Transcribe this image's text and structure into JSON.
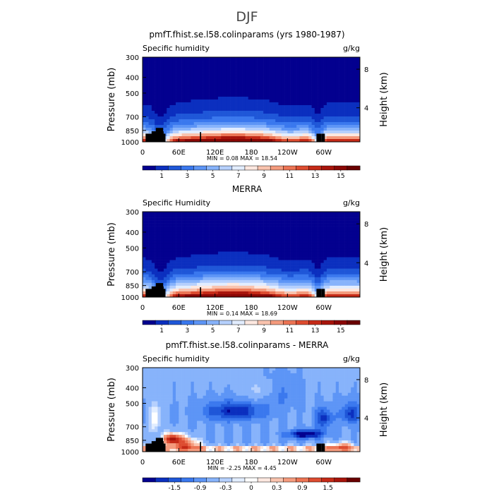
{
  "main_title": "DJF",
  "colors_positive": [
    "#03008f",
    "#0b2fbf",
    "#1f57d8",
    "#3a78ee",
    "#5d95f6",
    "#87b3fb",
    "#b6d0fd",
    "#e2edff",
    "#fde8e0",
    "#f9c3ae",
    "#f49b7d",
    "#ec7454",
    "#dd4c30",
    "#c52a17",
    "#a8140b",
    "#8a0705",
    "#6a0000"
  ],
  "colors_diff": [
    "#03008f",
    "#0b2fbf",
    "#1f57d8",
    "#3a78ee",
    "#5d95f6",
    "#87b3fb",
    "#b6d0fd",
    "#e2edff",
    "#ffffff",
    "#fde8e0",
    "#f9c3ae",
    "#f49b7d",
    "#ec7454",
    "#dd4c30",
    "#c52a17",
    "#a8140b",
    "#6a0000"
  ],
  "chart_data": [
    {
      "type": "heatmap",
      "title": "pmfT.fhist.se.l58.colinparams (yrs 1980-1987)",
      "left_string": "Specific humidity",
      "right_string": "g/kg",
      "ylabel": "Pressure (mb)",
      "ylabel_right": "Height (km)",
      "x_ticks": [
        "0",
        "60E",
        "120E",
        "180",
        "120W",
        "60W"
      ],
      "x_tick_values": [
        0,
        60,
        120,
        180,
        240,
        300
      ],
      "xlim": [
        0,
        360
      ],
      "y_ticks": [
        "300",
        "400",
        "500",
        "700",
        "850",
        "1000"
      ],
      "y_tick_values": [
        300,
        400,
        500,
        700,
        850,
        1000
      ],
      "ylim": [
        300,
        1000
      ],
      "right_ticks": [
        "8",
        "4"
      ],
      "right_tick_values": [
        356,
        616
      ],
      "min_max": "MIN =     0.08   MAX =   18.54",
      "colorbar_labels": [
        "1",
        "3",
        "5",
        "7",
        "9",
        "11",
        "13",
        "15"
      ],
      "colorbar_label_values": [
        1,
        3,
        5,
        7,
        9,
        11,
        13,
        15
      ],
      "colorbar_range": [
        0,
        16
      ],
      "field": "model"
    },
    {
      "type": "heatmap",
      "title": "MERRA",
      "left_string": "Specific Humidity",
      "right_string": "g/kg",
      "ylabel": "Pressure (mb)",
      "ylabel_right": "Height (km)",
      "x_ticks": [
        "0",
        "60E",
        "120E",
        "180",
        "120W",
        "60W"
      ],
      "x_tick_values": [
        0,
        60,
        120,
        180,
        240,
        300
      ],
      "xlim": [
        0,
        360
      ],
      "y_ticks": [
        "300",
        "400",
        "500",
        "700",
        "850",
        "1000"
      ],
      "y_tick_values": [
        300,
        400,
        500,
        700,
        850,
        1000
      ],
      "ylim": [
        300,
        1000
      ],
      "right_ticks": [
        "8",
        "4"
      ],
      "right_tick_values": [
        356,
        616
      ],
      "min_max": "MIN =     0.14   MAX =   18.69",
      "colorbar_labels": [
        "1",
        "3",
        "5",
        "7",
        "9",
        "11",
        "13",
        "15"
      ],
      "colorbar_label_values": [
        1,
        3,
        5,
        7,
        9,
        11,
        13,
        15
      ],
      "colorbar_range": [
        0,
        16
      ],
      "field": "merra"
    },
    {
      "type": "heatmap",
      "title": "pmfT.fhist.se.l58.colinparams - MERRA",
      "left_string": "Specific humidity",
      "right_string": "g/kg",
      "ylabel": "Pressure (mb)",
      "ylabel_right": "Height (km)",
      "x_ticks": [
        "0",
        "60E",
        "120E",
        "180",
        "120W",
        "60W"
      ],
      "x_tick_values": [
        0,
        60,
        120,
        180,
        240,
        300
      ],
      "xlim": [
        0,
        360
      ],
      "y_ticks": [
        "300",
        "400",
        "500",
        "700",
        "850",
        "1000"
      ],
      "y_tick_values": [
        300,
        400,
        500,
        700,
        850,
        1000
      ],
      "ylim": [
        300,
        1000
      ],
      "right_ticks": [
        "8",
        "4"
      ],
      "right_tick_values": [
        356,
        616
      ],
      "min_max": "MIN =   -2.25   MAX =    4.45",
      "colorbar_labels": [
        "-1.5",
        "-0.9",
        "-0.3",
        "0",
        "0.3",
        "0.9",
        "1.5"
      ],
      "colorbar_label_index": [
        2,
        4,
        6,
        8,
        10,
        12,
        14
      ],
      "field": "diff"
    }
  ]
}
